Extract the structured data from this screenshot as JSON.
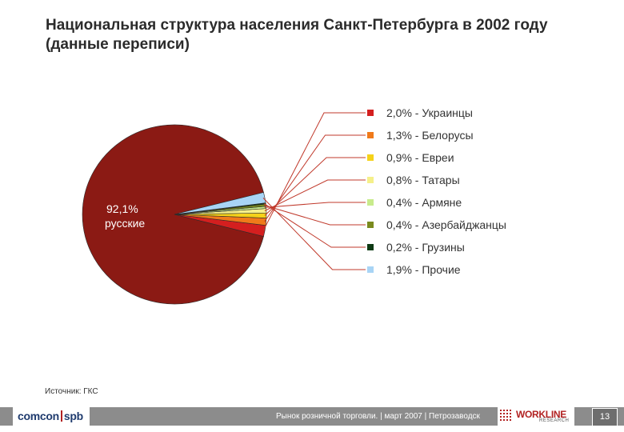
{
  "header": {
    "title": "Национальная структура населения Санкт-Петербурга в 2002 году (данные переписи)"
  },
  "chart_data": {
    "type": "pie",
    "title": "Национальная структура населения Санкт-Петербурга в 2002 году (данные переписи)",
    "main_label": {
      "value": "92,1%",
      "name": "русские"
    },
    "slices": [
      {
        "name": "русские",
        "value": 92.1,
        "color": "#8b1a14"
      },
      {
        "name": "Украинцы",
        "value": 2.0,
        "label": "2,0% - Украинцы",
        "color": "#d41f1f"
      },
      {
        "name": "Белорусы",
        "value": 1.3,
        "label": "1,3% - Белорусы",
        "color": "#f07a1a"
      },
      {
        "name": "Евреи",
        "value": 0.9,
        "label": "0,9% - Евреи",
        "color": "#f5d21a"
      },
      {
        "name": "Татары",
        "value": 0.8,
        "label": "0,8% - Татары",
        "color": "#f5f08a"
      },
      {
        "name": "Армяне",
        "value": 0.4,
        "label": "0,4% - Армяне",
        "color": "#c8eb8c"
      },
      {
        "name": "Азербайджанцы",
        "value": 0.4,
        "label": "0,4% - Азербайджанцы",
        "color": "#7a8a1e"
      },
      {
        "name": "Грузины",
        "value": 0.2,
        "label": "0,2% - Грузины",
        "color": "#0e3a14"
      },
      {
        "name": "Прочие",
        "value": 1.9,
        "label": "1,9% - Прочие",
        "color": "#a8d4f5"
      }
    ],
    "legend_position": "right",
    "leader_line_color": "#c0392b"
  },
  "source": "Источник: ГКС",
  "footer": {
    "logo_left": "comcon",
    "logo_right": "spb",
    "text": "Рынок розничной торговли. | март 2007 | Петрозаводск",
    "workline": "WORKLINE",
    "workline_sub": "RESEARCH",
    "page_number": "13"
  }
}
